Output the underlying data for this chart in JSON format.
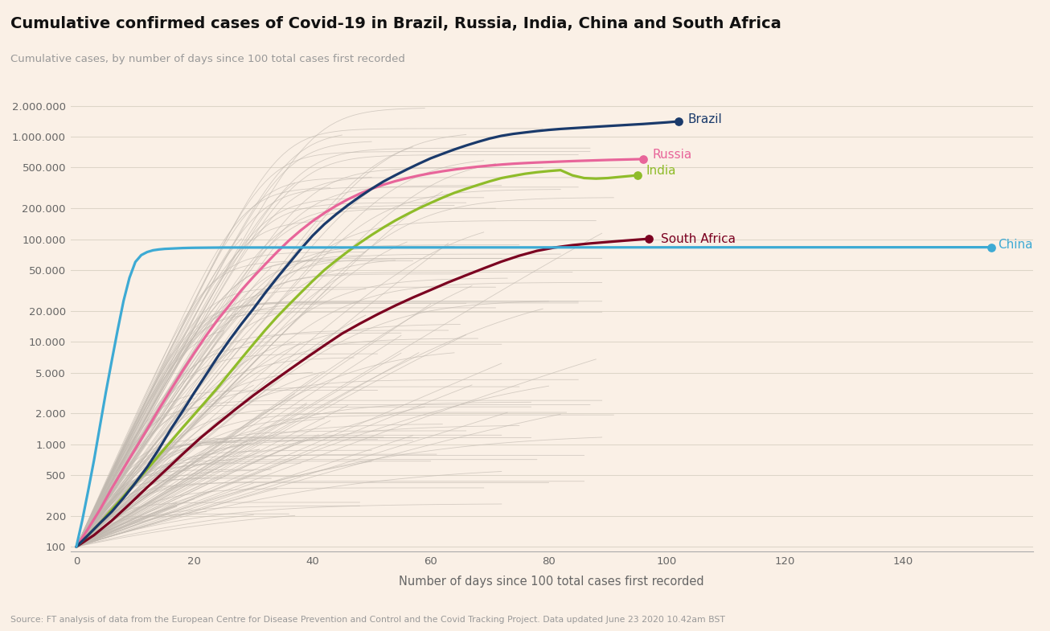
{
  "title": "Cumulative confirmed cases of Covid-19 in Brazil, Russia, India, China and South Africa",
  "subtitle": "Cumulative cases, by number of days since 100 total cases first recorded",
  "xlabel": "Number of days since 100 total cases first recorded",
  "source": "Source: FT analysis of data from the European Centre for Disease Prevention and Control and the Covid Tracking Project. Data updated June 23 2020 10.42am BST",
  "background_color": "#faf0e6",
  "grid_color": "#ddd5c8",
  "yticks": [
    100,
    200,
    500,
    1000,
    2000,
    5000,
    10000,
    20000,
    50000,
    100000,
    200000,
    500000,
    1000000,
    2000000
  ],
  "ytick_labels": [
    "100",
    "200",
    "500",
    "1.000",
    "2.000",
    "5.000",
    "10.000",
    "20.000",
    "50.000",
    "100.000",
    "200.000",
    "500.000",
    "1.000.000",
    "2.000.000"
  ],
  "ylim": [
    90,
    3000000
  ],
  "xlim": [
    -1,
    162
  ],
  "xticks": [
    0,
    20,
    40,
    60,
    80,
    100,
    120,
    140
  ],
  "brazil_color": "#1a3a6b",
  "russia_color": "#e8659a",
  "india_color": "#8fbc2a",
  "china_color": "#3daad4",
  "south_africa_color": "#7b0020",
  "gray_color": "#c0b8af"
}
